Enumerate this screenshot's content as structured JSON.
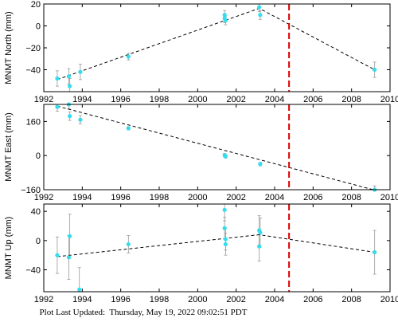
{
  "footer": {
    "label": "Plot Last Updated:",
    "datetime": "Thursday, May 19, 2022 09:02:51 PDT"
  },
  "colors": {
    "points": "#33ddee",
    "error_bars": "#999999",
    "trend": "#000000",
    "marker_line": "#dd0000",
    "axes": "#000000"
  },
  "chart_data": [
    {
      "type": "scatter",
      "ylabel": "MNMT North (mm)",
      "xlim": [
        1992,
        2010
      ],
      "ylim": [
        -60,
        20
      ],
      "xticks": [
        1992,
        1994,
        1996,
        1998,
        2000,
        2002,
        2004,
        2006,
        2008,
        2010
      ],
      "yticks": [
        -40,
        -20,
        0,
        20
      ],
      "grid": false,
      "error_bar_color": "#999999",
      "points": [
        {
          "x": 1992.7,
          "y": -48,
          "err": 7
        },
        {
          "x": 1993.3,
          "y": -46,
          "err": 7
        },
        {
          "x": 1993.35,
          "y": -55,
          "err": 7
        },
        {
          "x": 1993.9,
          "y": -42,
          "err": 7
        },
        {
          "x": 1996.4,
          "y": -28,
          "err": 3
        },
        {
          "x": 2001.4,
          "y": 10,
          "err": 4
        },
        {
          "x": 2001.4,
          "y": 7,
          "err": 4
        },
        {
          "x": 2001.45,
          "y": 5,
          "err": 4
        },
        {
          "x": 2003.2,
          "y": 17,
          "err": 4
        },
        {
          "x": 2003.25,
          "y": 10,
          "err": 4
        },
        {
          "x": 2009.2,
          "y": -40,
          "err": 7
        }
      ],
      "trend": [
        {
          "x": 1992.7,
          "y": -49
        },
        {
          "x": 2003.2,
          "y": 16
        },
        {
          "x": 2009.2,
          "y": -40
        }
      ],
      "vline": 2004.75
    },
    {
      "type": "scatter",
      "ylabel": "MNMT East (mm)",
      "xlim": [
        1992,
        2010
      ],
      "ylim": [
        -160,
        240
      ],
      "xticks": [
        1992,
        1994,
        1996,
        1998,
        2000,
        2002,
        2004,
        2006,
        2008,
        2010
      ],
      "yticks": [
        -160,
        0,
        160
      ],
      "grid": false,
      "error_bar_color": "#999999",
      "points": [
        {
          "x": 1992.7,
          "y": 228,
          "err": 20
        },
        {
          "x": 1993.3,
          "y": 240,
          "err": 20
        },
        {
          "x": 1993.35,
          "y": 185,
          "err": 20
        },
        {
          "x": 1993.9,
          "y": 168,
          "err": 20
        },
        {
          "x": 1996.4,
          "y": 128,
          "err": 8
        },
        {
          "x": 2001.4,
          "y": 2,
          "err": 8
        },
        {
          "x": 2001.45,
          "y": -4,
          "err": 8
        },
        {
          "x": 2003.25,
          "y": -40,
          "err": 8
        },
        {
          "x": 2009.2,
          "y": -162,
          "err": 20
        }
      ],
      "trend": [
        {
          "x": 1992.7,
          "y": 232
        },
        {
          "x": 2009.2,
          "y": -162
        }
      ],
      "vline": 2004.75
    },
    {
      "type": "scatter",
      "ylabel": "MNMT Up (mm)",
      "xlim": [
        1992,
        2010
      ],
      "ylim": [
        -70,
        50
      ],
      "xticks": [
        1992,
        1994,
        1996,
        1998,
        2000,
        2002,
        2004,
        2006,
        2008,
        2010
      ],
      "yticks": [
        -40,
        0,
        40
      ],
      "grid": false,
      "error_bar_color": "#999999",
      "points": [
        {
          "x": 1992.7,
          "y": -20,
          "err": 25
        },
        {
          "x": 1993.3,
          "y": -23,
          "err": 30
        },
        {
          "x": 1993.35,
          "y": 6,
          "err": 30
        },
        {
          "x": 1993.85,
          "y": -67,
          "err": 30
        },
        {
          "x": 1996.4,
          "y": -5,
          "err": 12
        },
        {
          "x": 2001.4,
          "y": 42,
          "err": 15
        },
        {
          "x": 2001.4,
          "y": 17,
          "err": 15
        },
        {
          "x": 2001.45,
          "y": 2,
          "err": 15
        },
        {
          "x": 2001.45,
          "y": -5,
          "err": 15
        },
        {
          "x": 2003.2,
          "y": 14,
          "err": 20
        },
        {
          "x": 2003.25,
          "y": 11,
          "err": 20
        },
        {
          "x": 2003.2,
          "y": -8,
          "err": 20
        },
        {
          "x": 2009.2,
          "y": -16,
          "err": 30
        }
      ],
      "trend": [
        {
          "x": 1992.7,
          "y": -22
        },
        {
          "x": 2003.2,
          "y": 8
        },
        {
          "x": 2009.2,
          "y": -16
        }
      ],
      "vline": 2004.75
    }
  ]
}
